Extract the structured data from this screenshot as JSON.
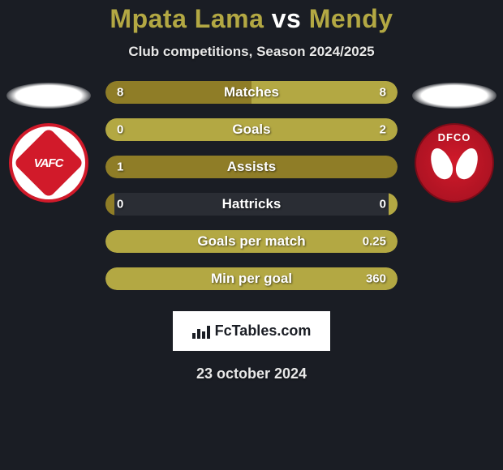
{
  "title": {
    "player1": "Mpata Lama",
    "vs": "vs",
    "player2": "Mendy"
  },
  "subtitle": "Club competitions, Season 2024/2025",
  "colors": {
    "player1": "#8f7d27",
    "player2": "#b3a843",
    "bar_bg": "#2a2d34",
    "page_bg": "#1a1d24",
    "title_accent": "#b3a843"
  },
  "clubs": {
    "left": {
      "abbr": "VAFC"
    },
    "right": {
      "abbr": "DFCO"
    }
  },
  "stats": [
    {
      "label": "Matches",
      "left_val": "8",
      "right_val": "8",
      "left_pct": 50,
      "right_pct": 50
    },
    {
      "label": "Goals",
      "left_val": "0",
      "right_val": "2",
      "left_pct": 18,
      "right_pct": 100
    },
    {
      "label": "Assists",
      "left_val": "1",
      "right_val": "",
      "left_pct": 100,
      "right_pct": 0
    },
    {
      "label": "Hattricks",
      "left_val": "0",
      "right_val": "0",
      "left_pct": 3,
      "right_pct": 3
    },
    {
      "label": "Goals per match",
      "left_val": "",
      "right_val": "0.25",
      "left_pct": 0,
      "right_pct": 100
    },
    {
      "label": "Min per goal",
      "left_val": "",
      "right_val": "360",
      "left_pct": 0,
      "right_pct": 100
    }
  ],
  "footer": {
    "site": "FcTables.com",
    "date": "23 october 2024"
  }
}
